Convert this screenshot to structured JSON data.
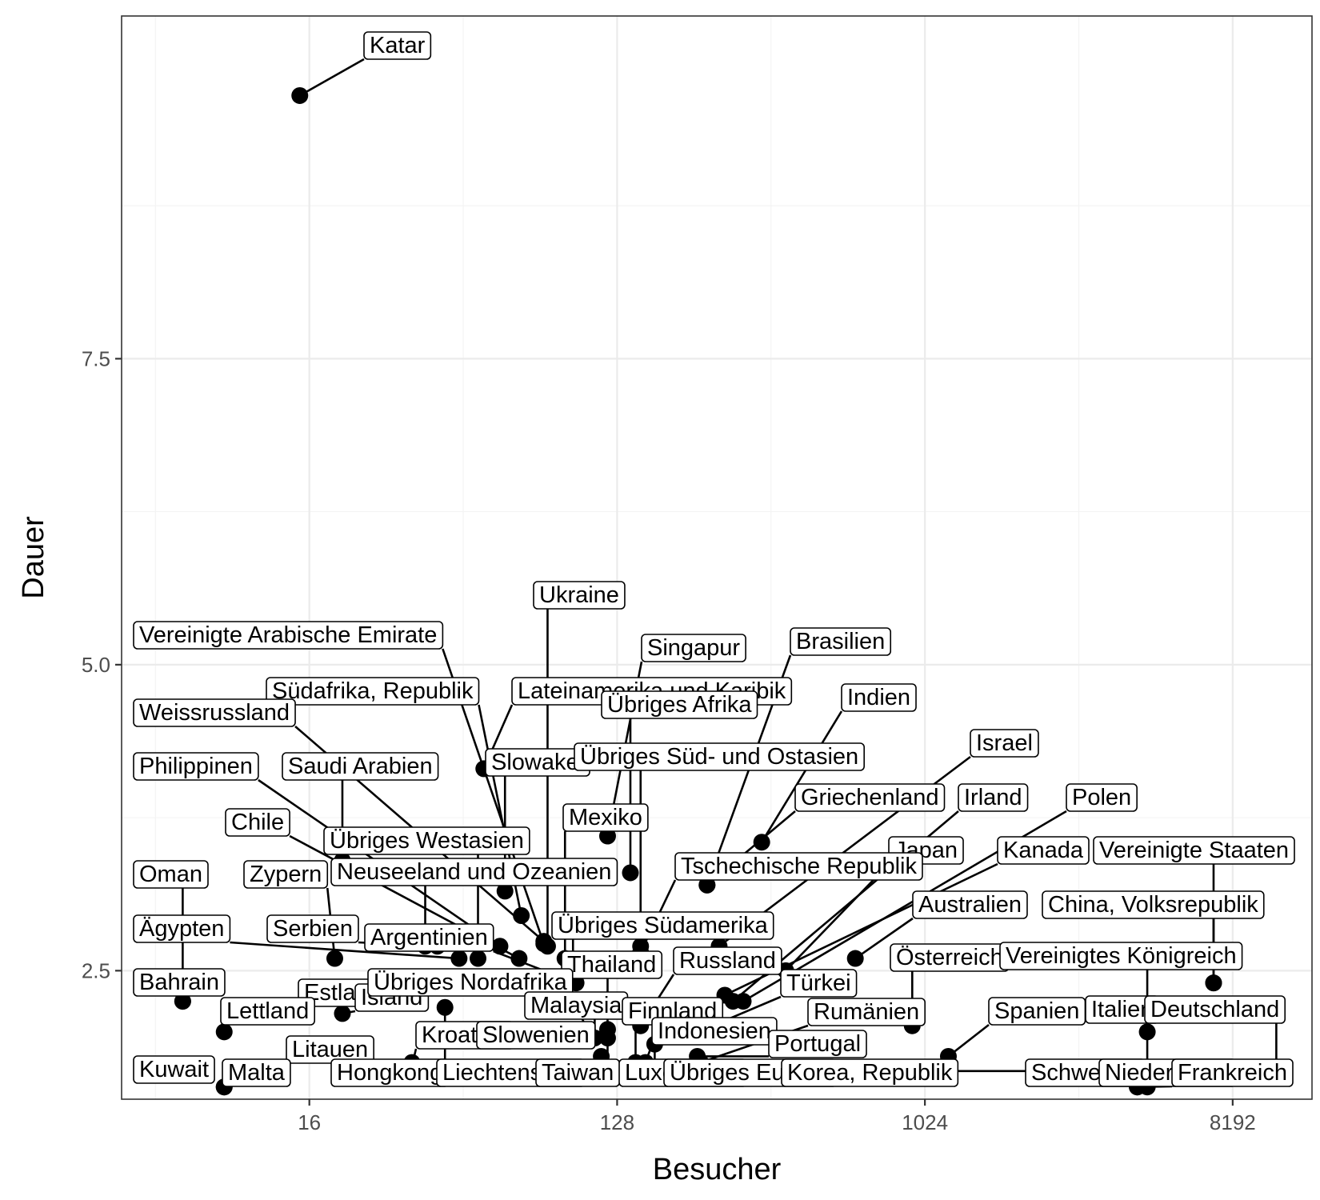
{
  "chart_data": {
    "type": "scatter",
    "xlabel": "Besucher",
    "ylabel": "Dauer",
    "x_scale": "log2",
    "xlim": [
      4.5,
      14000
    ],
    "ylim": [
      1.45,
      10.3
    ],
    "x_ticks": [
      16,
      128,
      1024,
      8192
    ],
    "x_tick_labels": [
      "16",
      "128",
      "1024",
      "8192"
    ],
    "y_ticks": [
      2.5,
      5.0,
      7.5
    ],
    "y_tick_labels": [
      "2.5",
      "5.0",
      "7.5"
    ],
    "grid": true,
    "theme": "bw",
    "points": [
      {
        "label": "Katar",
        "x": 15,
        "y": 9.65
      },
      {
        "label": "Ukraine",
        "x": 80,
        "y": 2.7
      },
      {
        "label": "Vereinigte Arabische Emirate",
        "x": 78,
        "y": 2.72
      },
      {
        "label": "Singapur",
        "x": 120,
        "y": 3.6
      },
      {
        "label": "Brasilien",
        "x": 235,
        "y": 3.2
      },
      {
        "label": "Südafrika, Republik",
        "x": 67,
        "y": 2.95
      },
      {
        "label": "Lateinamerika und Karibik",
        "x": 52,
        "y": 4.15
      },
      {
        "label": "Übriges Afrika",
        "x": 140,
        "y": 3.3
      },
      {
        "label": "Indien",
        "x": 340,
        "y": 3.55
      },
      {
        "label": "Weissrussland",
        "x": 78,
        "y": 2.74
      },
      {
        "label": "Israel",
        "x": 255,
        "y": 2.7
      },
      {
        "label": "Slowakei",
        "x": 60,
        "y": 3.15
      },
      {
        "label": "Übriges Süd- und Ostasien",
        "x": 150,
        "y": 2.7
      },
      {
        "label": "Philippinen",
        "x": 58,
        "y": 2.7
      },
      {
        "label": "Saudi Arabien",
        "x": 20,
        "y": 3.4
      },
      {
        "label": "Griechenland",
        "x": 235,
        "y": 3.2
      },
      {
        "label": "Irland",
        "x": 280,
        "y": 2.25
      },
      {
        "label": "Polen",
        "x": 300,
        "y": 2.25
      },
      {
        "label": "Mexiko",
        "x": 90,
        "y": 2.6
      },
      {
        "label": "Chile",
        "x": 66,
        "y": 2.6
      },
      {
        "label": "Kanada",
        "x": 265,
        "y": 2.3
      },
      {
        "label": "Vereinigte Staaten",
        "x": 7200,
        "y": 2.4
      },
      {
        "label": "Übriges Westasien",
        "x": 50,
        "y": 2.6
      },
      {
        "label": "Japan",
        "x": 400,
        "y": 2.5
      },
      {
        "label": "Tschechische Republik",
        "x": 150,
        "y": 2.65
      },
      {
        "label": "Oman",
        "x": 6.8,
        "y": 2.25
      },
      {
        "label": "Zypern",
        "x": 19,
        "y": 2.6
      },
      {
        "label": "Neuseeland und Ozeanien",
        "x": 35,
        "y": 2.7
      },
      {
        "label": "Australien",
        "x": 640,
        "y": 2.6
      },
      {
        "label": "China, Volksrepublik",
        "x": 7200,
        "y": 2.4
      },
      {
        "label": "Ägypten",
        "x": 44,
        "y": 2.6
      },
      {
        "label": "Serbien",
        "x": 38,
        "y": 2.7
      },
      {
        "label": "Übriges Südamerika",
        "x": 95,
        "y": 2.45
      },
      {
        "label": "Argentinien",
        "x": 97,
        "y": 2.4
      },
      {
        "label": "Bahrain",
        "x": 6.8,
        "y": 2.25
      },
      {
        "label": "Österreich",
        "x": 940,
        "y": 2.05
      },
      {
        "label": "Vereinigtes Königreich",
        "x": 4600,
        "y": 2.0
      },
      {
        "label": "Russland",
        "x": 150,
        "y": 2.05
      },
      {
        "label": "Thailand",
        "x": 120,
        "y": 2.02
      },
      {
        "label": "Türkei",
        "x": 230,
        "y": 2.02
      },
      {
        "label": "Estland",
        "x": 12.5,
        "y": 2.15
      },
      {
        "label": "Island",
        "x": 20,
        "y": 2.15
      },
      {
        "label": "Übriges Nordafrika",
        "x": 105,
        "y": 2.0
      },
      {
        "label": "Lettland",
        "x": 9,
        "y": 2.0
      },
      {
        "label": "Malaysia",
        "x": 110,
        "y": 1.95
      },
      {
        "label": "Finnland",
        "x": 145,
        "y": 1.75
      },
      {
        "label": "Rumänien",
        "x": 225,
        "y": 1.75
      },
      {
        "label": "Spanien",
        "x": 1200,
        "y": 1.8
      },
      {
        "label": "Italien",
        "x": 4600,
        "y": 1.55
      },
      {
        "label": "Deutschland",
        "x": 11000,
        "y": 1.68
      },
      {
        "label": "Kroatien",
        "x": 32,
        "y": 1.72
      },
      {
        "label": "Slowenien",
        "x": 115,
        "y": 1.8
      },
      {
        "label": "Indonesien",
        "x": 155,
        "y": 1.75
      },
      {
        "label": "Portugal",
        "x": 220,
        "y": 1.8
      },
      {
        "label": "Litauen",
        "x": 32,
        "y": 1.75
      },
      {
        "label": "Kuwait",
        "x": 9,
        "y": 1.55
      },
      {
        "label": "Malta",
        "x": 9,
        "y": 1.55
      },
      {
        "label": "Hongkong",
        "x": 32,
        "y": 1.72
      },
      {
        "label": "Liechtenstein",
        "x": 40,
        "y": 2.2
      },
      {
        "label": "Taiwan",
        "x": 120,
        "y": 1.95
      },
      {
        "label": "Luxemburg",
        "x": 165,
        "y": 1.9
      },
      {
        "label": "Übriges Europa",
        "x": 220,
        "y": 1.75
      },
      {
        "label": "Korea, Republik",
        "x": 250,
        "y": 1.68
      },
      {
        "label": "Schweden",
        "x": 1200,
        "y": 1.68
      },
      {
        "label": "Niederlande",
        "x": 4300,
        "y": 1.55
      },
      {
        "label": "Frankreich",
        "x": 4300,
        "y": 1.55
      }
    ]
  }
}
